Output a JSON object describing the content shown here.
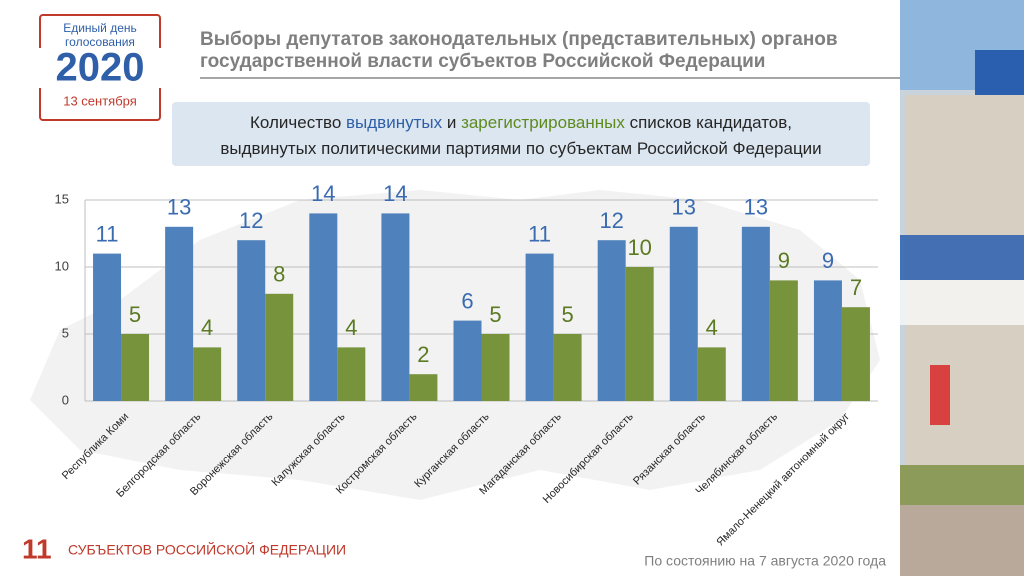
{
  "logo": {
    "caption": [
      "Единый день",
      "голосования"
    ],
    "year": "2020",
    "date": "13 сентября"
  },
  "header": {
    "title": [
      "Выборы депутатов законодательных (представительных) органов",
      "государственной власти субъектов Российской Федерации"
    ]
  },
  "subtitle": {
    "lines": [
      [
        {
          "text": "Количество ",
          "color": "#262626"
        },
        {
          "text": "выдвинутых",
          "color": "#2e5fa8"
        },
        {
          "text": " и ",
          "color": "#262626"
        },
        {
          "text": "зарегистрированных",
          "color": "#5e8a1e"
        },
        {
          "text": " списков кандидатов,",
          "color": "#262626"
        }
      ],
      [
        {
          "text": "выдвинутых политическими партиями по субъектам Российской Федерации",
          "color": "#262626"
        }
      ]
    ]
  },
  "chart_data": {
    "type": "bar",
    "categories": [
      "Республика Коми",
      "Белгородская область",
      "Воронежская область",
      "Калужская область",
      "Костромская область",
      "Курганская область",
      "Магаданская область",
      "Новосибирская область",
      "Рязанская область",
      "Челябинская область",
      "Ямало-Ненецкий автономный округ"
    ],
    "series": [
      {
        "color": "#4f81bd",
        "label_color": "#3a6bb0",
        "values": [
          11,
          13,
          12,
          14,
          14,
          6,
          11,
          12,
          13,
          13,
          9
        ]
      },
      {
        "color": "#77933c",
        "label_color": "#5b7a22",
        "values": [
          5,
          4,
          8,
          4,
          2,
          5,
          5,
          10,
          4,
          9,
          7
        ]
      }
    ],
    "ylim": [
      0,
      15
    ],
    "yticks": [
      0,
      5,
      10,
      15
    ],
    "grid": true
  },
  "footer": {
    "count": 11,
    "count_label": "СУБЪЕКТОВ РОССИЙСКОЙ ФЕДЕРАЦИИ",
    "note": "По состоянию на 7 августа 2020 года"
  }
}
